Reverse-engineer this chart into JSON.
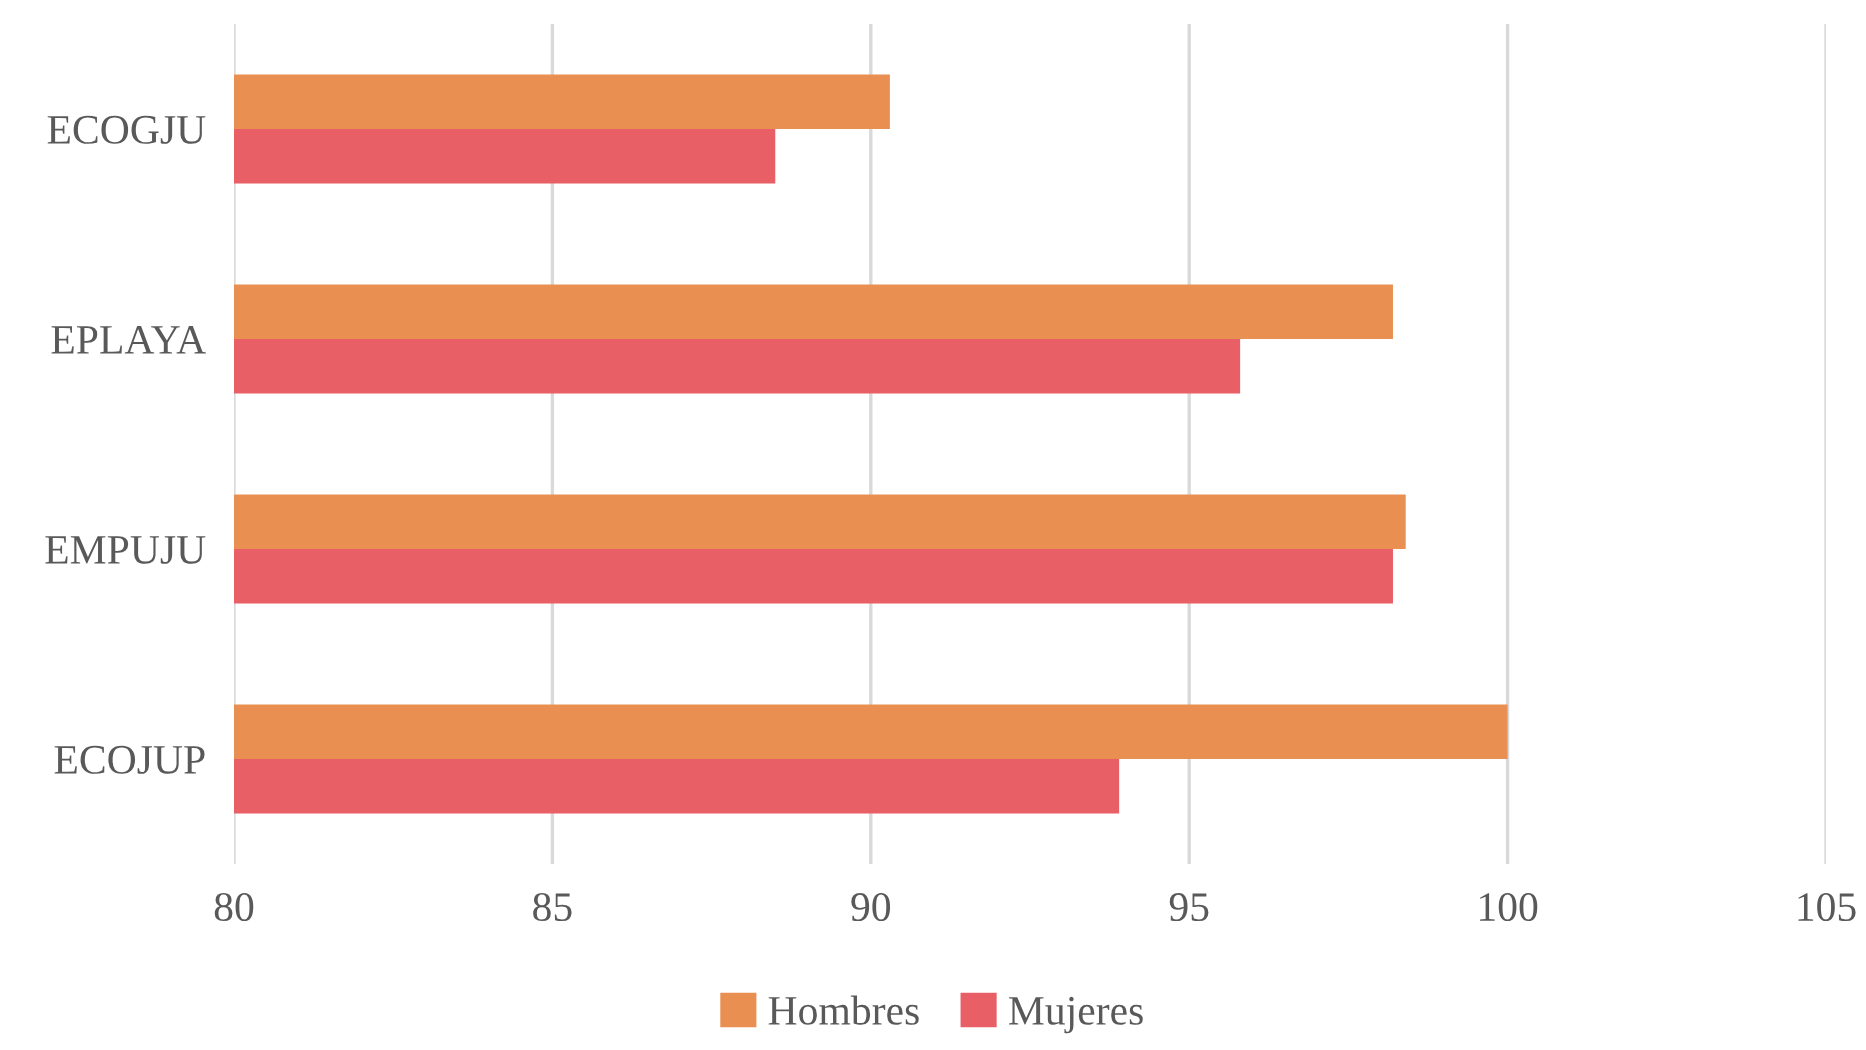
{
  "chart_data": {
    "type": "bar",
    "orientation": "horizontal",
    "categories": [
      "ECOGJU",
      "EPLAYA",
      "EMPUJU",
      "ECOJUP"
    ],
    "series": [
      {
        "name": "Hombres",
        "color": "#e98f52",
        "values": [
          90.3,
          98.2,
          98.4,
          100.0
        ]
      },
      {
        "name": "Mujeres",
        "color": "#e95f66",
        "values": [
          88.5,
          95.8,
          98.2,
          93.9
        ]
      }
    ],
    "xlim": [
      80,
      105
    ],
    "xticks": [
      80,
      85,
      90,
      95,
      100,
      105
    ],
    "grid": "x",
    "legend": "bottom"
  }
}
